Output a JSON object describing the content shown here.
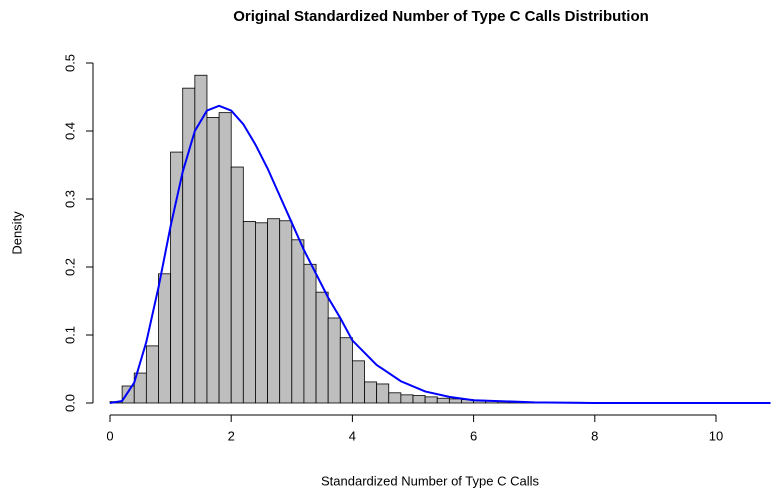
{
  "chart_data": {
    "type": "histogram",
    "title": "Original Standardized Number of Type C Calls Distribution",
    "xlabel": "Standardized Number of Type C Calls",
    "ylabel": "Density",
    "bins": [
      0,
      0.2,
      0.4,
      0.6,
      0.8,
      1.0,
      1.2,
      1.4,
      1.6,
      1.8,
      2.0,
      2.2,
      2.4,
      2.6,
      2.8,
      3.0,
      3.2,
      3.4,
      3.6,
      3.8,
      4.0,
      4.2,
      4.4,
      4.6,
      4.8,
      5.0,
      5.2,
      5.4,
      5.6,
      5.8,
      6.0,
      6.2,
      6.4,
      6.6,
      6.8,
      7.0,
      7.2,
      7.4,
      7.6,
      7.8
    ],
    "values": [
      0.002,
      0.025,
      0.044,
      0.084,
      0.19,
      0.369,
      0.463,
      0.482,
      0.42,
      0.427,
      0.347,
      0.267,
      0.265,
      0.271,
      0.268,
      0.24,
      0.204,
      0.163,
      0.125,
      0.096,
      0.062,
      0.031,
      0.028,
      0.015,
      0.012,
      0.011,
      0.009,
      0.007,
      0.006,
      0.005,
      0.004,
      0.003,
      0.002,
      0.002,
      0.001,
      0.001,
      0.001,
      0.001,
      0.001
    ],
    "color": "#bebebe",
    "curve": {
      "color": "#0000ff",
      "x": [
        0,
        0.2,
        0.4,
        0.6,
        0.8,
        1.0,
        1.2,
        1.4,
        1.6,
        1.8,
        2.0,
        2.2,
        2.4,
        2.6,
        2.8,
        3.0,
        3.2,
        3.4,
        3.6,
        3.8,
        4.0,
        4.4,
        4.8,
        5.2,
        5.6,
        6.0,
        7.0,
        8.0,
        10.9
      ],
      "values": [
        0,
        0.003,
        0.03,
        0.09,
        0.17,
        0.26,
        0.34,
        0.4,
        0.43,
        0.437,
        0.43,
        0.41,
        0.38,
        0.345,
        0.305,
        0.265,
        0.225,
        0.19,
        0.155,
        0.125,
        0.092,
        0.056,
        0.032,
        0.017,
        0.009,
        0.004,
        0.001,
        0,
        0
      ]
    },
    "xlim": [
      0,
      10
    ],
    "xticks": [
      0,
      2,
      4,
      6,
      8,
      10
    ],
    "ylim": [
      0,
      0.5
    ],
    "yticks": [
      {
        "value": 0,
        "label": "0.0"
      },
      0.1,
      0.2,
      0.3,
      0.4,
      0.5
    ]
  }
}
